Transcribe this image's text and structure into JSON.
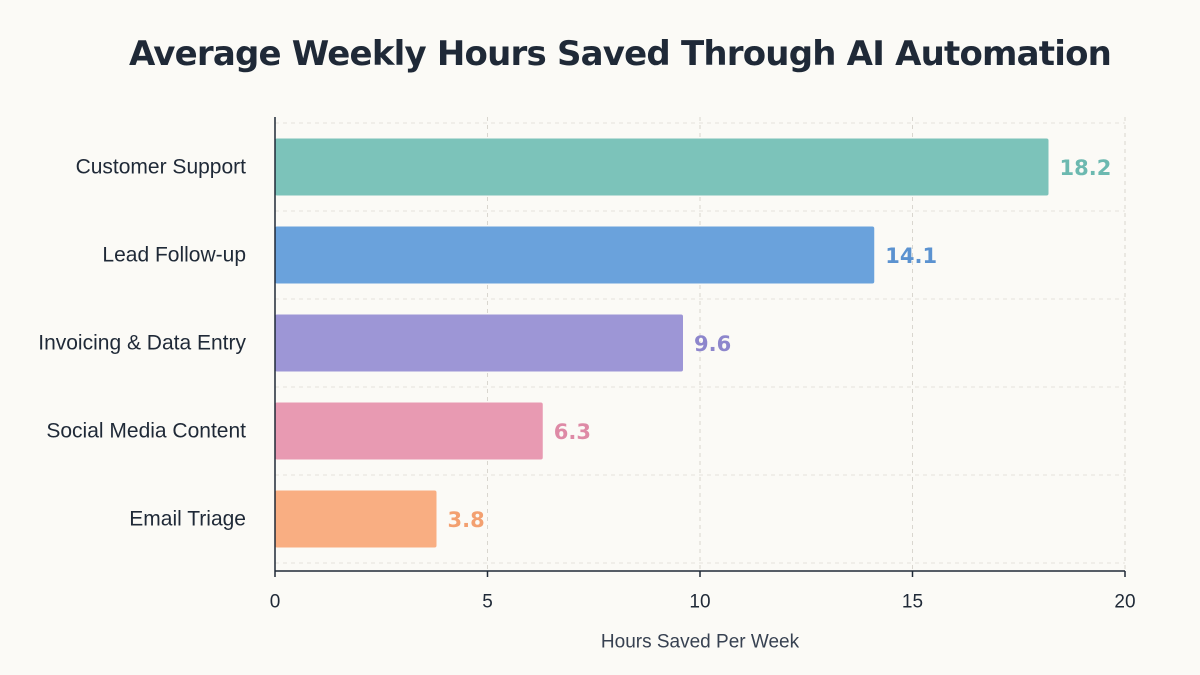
{
  "chart_data": {
    "type": "bar",
    "orientation": "horizontal",
    "title": "Average Weekly Hours Saved Through AI Automation",
    "xlabel": "Hours Saved Per Week",
    "ylabel": "",
    "xlim": [
      0,
      20
    ],
    "xticks": [
      0,
      5,
      10,
      15,
      20
    ],
    "grid": true,
    "categories": [
      "Customer Support",
      "Lead Follow-up",
      "Invoicing & Data Entry",
      "Social Media Content",
      "Email Triage"
    ],
    "values": [
      18.2,
      14.1,
      9.6,
      6.3,
      3.8
    ],
    "value_labels": [
      "18.2",
      "14.1",
      "9.6",
      "6.3",
      "3.8"
    ],
    "colors": [
      "#7cc3ba",
      "#6aa2dc",
      "#9d96d6",
      "#e89ab2",
      "#f9ae82"
    ],
    "label_colors": [
      "#6cb9b0",
      "#5b92d0",
      "#8d86cc",
      "#de8aa6",
      "#f3a070"
    ]
  }
}
